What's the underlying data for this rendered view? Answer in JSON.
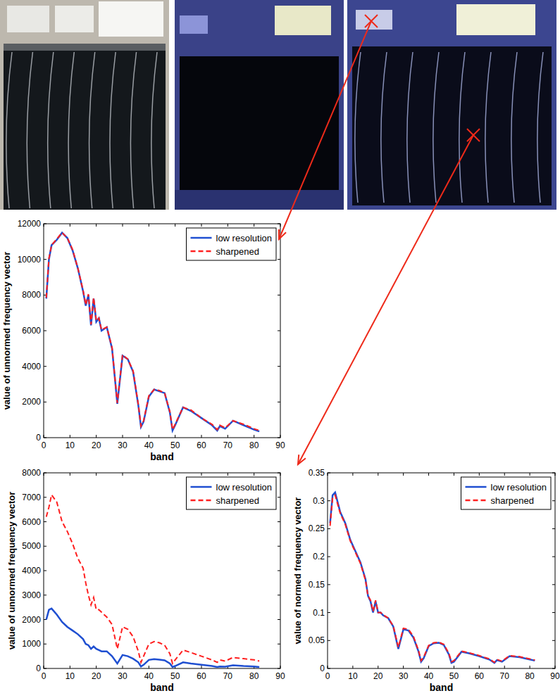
{
  "chart_data": [
    {
      "type": "line",
      "xlabel": "band",
      "ylabel": "value of unnormed frequency vector",
      "x": [
        1,
        2,
        3,
        5,
        7,
        9,
        11,
        13,
        15,
        16,
        17,
        18,
        19,
        20,
        21,
        22,
        24,
        26,
        28,
        30,
        32,
        34,
        36,
        37,
        38,
        40,
        42,
        44,
        46,
        48,
        49,
        50,
        53,
        56,
        60,
        64,
        66,
        67,
        69,
        72,
        76,
        80,
        82
      ],
      "xlim": [
        0,
        90
      ],
      "xticks": [
        0,
        10,
        20,
        30,
        40,
        50,
        60,
        70,
        80,
        90
      ],
      "ylim": [
        0,
        12000
      ],
      "yticks": [
        0,
        2000,
        4000,
        6000,
        8000,
        10000,
        12000
      ],
      "legend": "northeast",
      "series": [
        {
          "name": "low resolution",
          "color": "#1f4fd1",
          "line_style": "solid",
          "values": [
            7800,
            10000,
            10800,
            11100,
            11500,
            11200,
            10500,
            9500,
            8200,
            7400,
            8000,
            6300,
            7800,
            6500,
            6700,
            6000,
            6200,
            5000,
            1900,
            4600,
            4400,
            3700,
            1800,
            600,
            900,
            2300,
            2700,
            2600,
            2500,
            1400,
            400,
            700,
            1700,
            1500,
            1100,
            700,
            400,
            650,
            500,
            950,
            700,
            450,
            350
          ]
        },
        {
          "name": "sharpened",
          "color": "#ff2020",
          "line_style": "dashed",
          "values": [
            7850,
            10050,
            10800,
            11150,
            11500,
            11200,
            10550,
            9500,
            8250,
            7450,
            8050,
            6350,
            7850,
            6550,
            6700,
            6050,
            6200,
            5050,
            1950,
            4650,
            4400,
            3750,
            1850,
            650,
            950,
            2350,
            2700,
            2650,
            2500,
            1450,
            450,
            750,
            1700,
            1550,
            1100,
            750,
            450,
            700,
            550,
            950,
            750,
            500,
            400
          ]
        }
      ]
    },
    {
      "type": "line",
      "xlabel": "band",
      "ylabel": "value of unnormed frequency vector",
      "x": [
        1,
        2,
        3,
        5,
        7,
        9,
        11,
        13,
        15,
        16,
        17,
        18,
        19,
        20,
        21,
        22,
        24,
        26,
        28,
        30,
        32,
        34,
        36,
        37,
        38,
        40,
        42,
        44,
        46,
        48,
        49,
        50,
        53,
        56,
        60,
        64,
        66,
        67,
        69,
        72,
        76,
        80,
        82
      ],
      "xlim": [
        0,
        90
      ],
      "xticks": [
        0,
        10,
        20,
        30,
        40,
        50,
        60,
        70,
        80,
        90
      ],
      "ylim": [
        0,
        8000
      ],
      "yticks": [
        0,
        1000,
        2000,
        3000,
        4000,
        5000,
        6000,
        7000,
        8000
      ],
      "legend": "northeast",
      "series": [
        {
          "name": "low resolution",
          "color": "#1f4fd1",
          "line_style": "solid",
          "values": [
            2000,
            2400,
            2450,
            2200,
            1900,
            1700,
            1550,
            1400,
            1200,
            1000,
            950,
            800,
            900,
            800,
            750,
            700,
            700,
            500,
            200,
            550,
            500,
            400,
            250,
            80,
            150,
            350,
            380,
            360,
            330,
            200,
            60,
            100,
            250,
            200,
            150,
            100,
            60,
            80,
            70,
            130,
            100,
            80,
            60
          ]
        },
        {
          "name": "sharpened",
          "color": "#ff2020",
          "line_style": "dashed",
          "values": [
            6200,
            6600,
            7100,
            6800,
            6000,
            5600,
            5100,
            4500,
            4100,
            3500,
            3000,
            2600,
            2900,
            2400,
            2400,
            2300,
            2100,
            1800,
            800,
            1700,
            1600,
            1300,
            700,
            250,
            500,
            1000,
            1100,
            1050,
            950,
            600,
            200,
            350,
            750,
            650,
            500,
            350,
            250,
            350,
            300,
            450,
            400,
            350,
            300
          ]
        }
      ]
    },
    {
      "type": "line",
      "xlabel": "band",
      "ylabel": "value of normed frequency vector",
      "x": [
        1,
        2,
        3,
        5,
        7,
        9,
        11,
        13,
        15,
        16,
        17,
        18,
        19,
        20,
        21,
        22,
        24,
        26,
        28,
        30,
        32,
        34,
        36,
        37,
        38,
        40,
        42,
        44,
        46,
        48,
        49,
        50,
        53,
        56,
        60,
        64,
        66,
        67,
        69,
        72,
        76,
        80,
        82
      ],
      "xlim": [
        0,
        90
      ],
      "xticks": [
        0,
        10,
        20,
        30,
        40,
        50,
        60,
        70,
        80,
        90
      ],
      "ylim": [
        0,
        0.35
      ],
      "yticks": [
        0,
        0.05,
        0.1,
        0.15,
        0.2,
        0.25,
        0.3,
        0.35
      ],
      "legend": "northeast",
      "series": [
        {
          "name": "low resolution",
          "color": "#1f4fd1",
          "line_style": "solid",
          "values": [
            0.26,
            0.31,
            0.315,
            0.28,
            0.26,
            0.23,
            0.21,
            0.19,
            0.16,
            0.13,
            0.12,
            0.1,
            0.12,
            0.1,
            0.1,
            0.095,
            0.09,
            0.075,
            0.035,
            0.07,
            0.068,
            0.055,
            0.03,
            0.012,
            0.018,
            0.04,
            0.045,
            0.046,
            0.042,
            0.025,
            0.01,
            0.012,
            0.03,
            0.027,
            0.022,
            0.016,
            0.01,
            0.015,
            0.012,
            0.022,
            0.02,
            0.016,
            0.014
          ]
        },
        {
          "name": "sharpened",
          "color": "#ff2020",
          "line_style": "dashed",
          "values": [
            0.255,
            0.305,
            0.31,
            0.278,
            0.258,
            0.228,
            0.208,
            0.188,
            0.158,
            0.13,
            0.122,
            0.102,
            0.122,
            0.1,
            0.1,
            0.096,
            0.09,
            0.076,
            0.038,
            0.072,
            0.07,
            0.057,
            0.032,
            0.014,
            0.02,
            0.041,
            0.046,
            0.047,
            0.043,
            0.027,
            0.012,
            0.014,
            0.031,
            0.028,
            0.023,
            0.017,
            0.011,
            0.016,
            0.013,
            0.023,
            0.021,
            0.017,
            0.015
          ]
        }
      ]
    }
  ]
}
